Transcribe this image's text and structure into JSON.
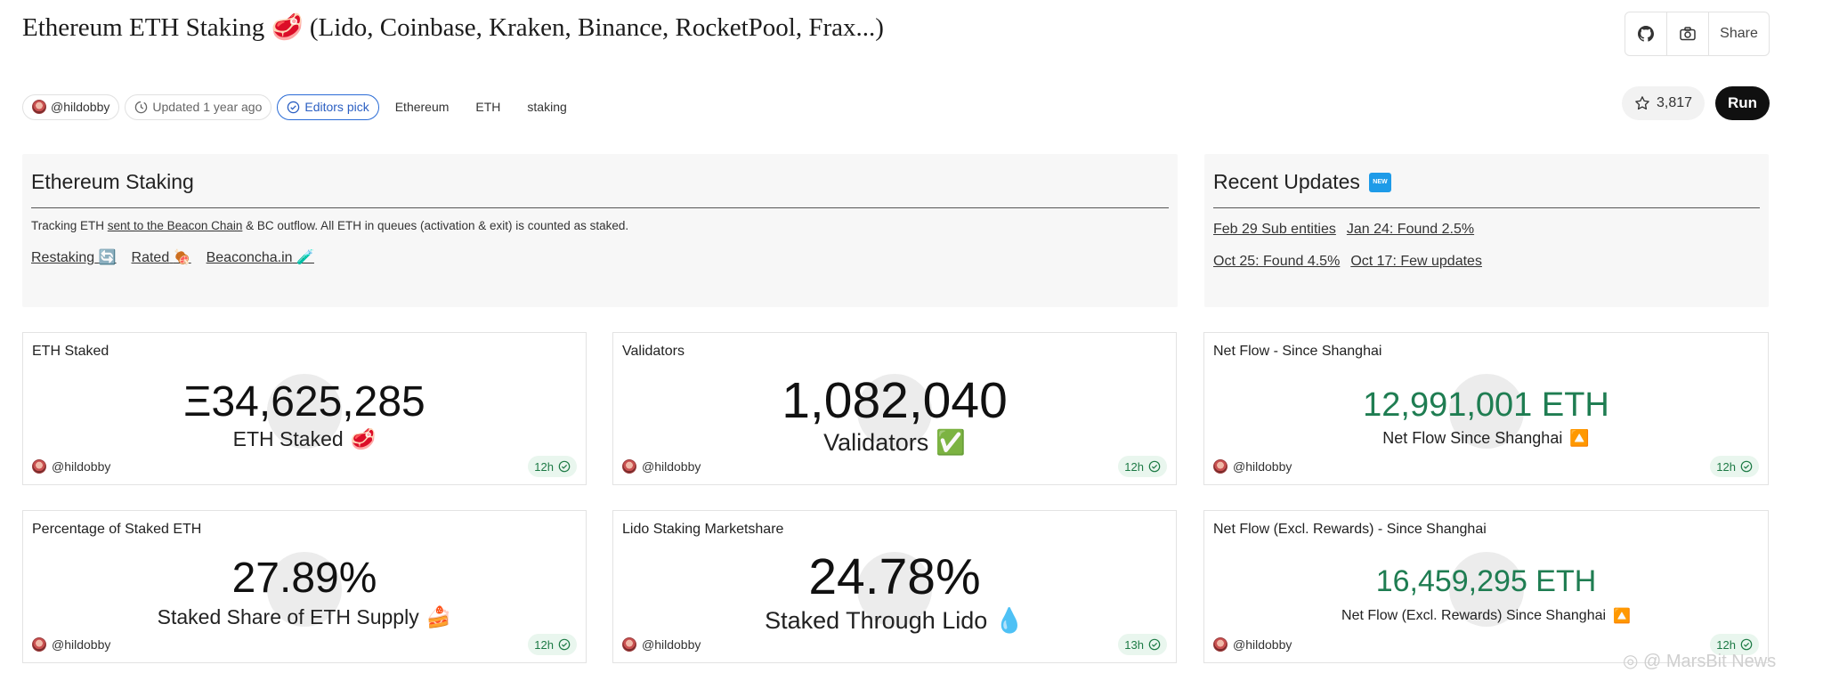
{
  "title": "Ethereum ETH Staking 🥩 (Lido, Coinbase, Kraken, Binance, RocketPool, Frax...)",
  "toolbar": {
    "share_label": "Share",
    "github_icon": "github-icon",
    "camera_icon": "camera-icon"
  },
  "meta": {
    "author": "@hildobby",
    "updated": "Updated 1 year ago",
    "editors_pick": "Editors pick",
    "tags": [
      "Ethereum",
      "ETH",
      "staking"
    ]
  },
  "star_count": "3,817",
  "run_label": "Run",
  "overview": {
    "title": "Ethereum Staking",
    "desc_prefix": "Tracking ETH ",
    "desc_link": "sent to the Beacon Chain",
    "desc_suffix": " & BC outflow. All ETH in queues (activation & exit) is counted as staked.",
    "links": [
      {
        "label": "Restaking",
        "emoji": "🔄"
      },
      {
        "label": "Rated",
        "emoji": "🍖"
      },
      {
        "label": "Beaconcha.in",
        "emoji": "🧪"
      }
    ]
  },
  "recent": {
    "title": "Recent Updates",
    "badge": "NEW",
    "row1": [
      "Feb 29 Sub entities",
      "Jan 24: Found 2.5%"
    ],
    "row2": [
      "Oct 25: Found 4.5%",
      "Oct 17: Few updates"
    ]
  },
  "cards": [
    {
      "label": "ETH Staked",
      "value": "Ξ34,625,285",
      "sub": "ETH Staked",
      "emoji": "🥩",
      "author": "@hildobby",
      "age": "12h"
    },
    {
      "label": "Validators",
      "value": "1,082,040",
      "sub": "Validators",
      "emoji": "✅",
      "author": "@hildobby",
      "age": "12h"
    },
    {
      "label": "Net Flow - Since Shanghai",
      "value": "12,991,001 ETH",
      "sub": "Net Flow Since Shanghai",
      "emoji": "🔼",
      "author": "@hildobby",
      "age": "12h"
    },
    {
      "label": "Percentage of Staked ETH",
      "value": "27.89%",
      "sub": "Staked Share of ETH Supply",
      "emoji": "🍰",
      "author": "@hildobby",
      "age": "12h"
    },
    {
      "label": "Lido Staking Marketshare",
      "value": "24.78%",
      "sub": "Staked Through Lido",
      "emoji": "💧",
      "author": "@hildobby",
      "age": "13h"
    },
    {
      "label": "Net Flow (Excl. Rewards) - Since Shanghai",
      "value": "16,459,295 ETH",
      "sub": "Net Flow (Excl. Rewards) Since Shanghai",
      "emoji": "🔼",
      "author": "@hildobby",
      "age": "12h"
    }
  ],
  "watermark": "MarsBit News",
  "colors": {
    "accent_green": "#1f7d52",
    "run_bg": "#101010",
    "editors_blue": "#2b6cd6",
    "new_badge": "#1e9be8"
  }
}
